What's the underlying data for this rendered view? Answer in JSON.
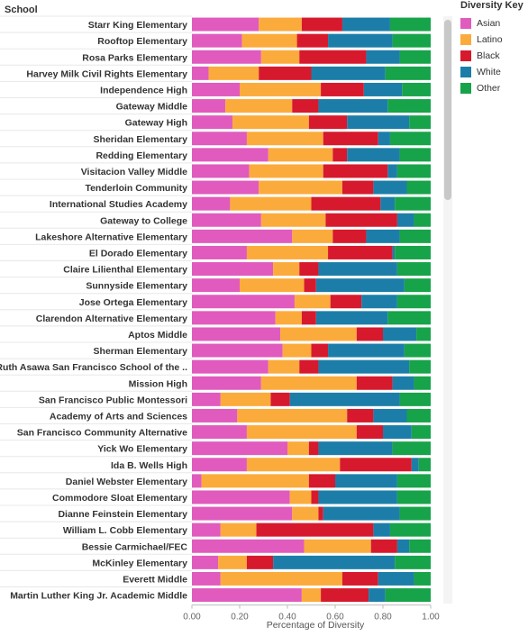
{
  "chart_data": {
    "type": "bar",
    "orientation": "horizontal",
    "stacked": true,
    "header": "School",
    "xlabel": "Percentage of Diversity",
    "xlim": [
      0,
      1
    ],
    "xticks": [
      "0.00",
      "0.20",
      "0.40",
      "0.60",
      "0.80",
      "1.00"
    ],
    "legend_title": "Diversity Key",
    "legend_position": "top-right",
    "series": [
      {
        "name": "Asian",
        "color": "#e05bbd"
      },
      {
        "name": "Latino",
        "color": "#fbab3c"
      },
      {
        "name": "Black",
        "color": "#d7192d"
      },
      {
        "name": "White",
        "color": "#1c7ea8"
      },
      {
        "name": "Other",
        "color": "#17a34a"
      }
    ],
    "categories": [
      "Starr King Elementary",
      "Rooftop Elementary",
      "Rosa Parks Elementary",
      "Harvey Milk Civil Rights Elementary",
      "Independence High",
      "Gateway Middle",
      "Gateway High",
      "Sheridan Elementary",
      "Redding Elementary",
      "Visitacion Valley Middle",
      "Tenderloin Community",
      "International Studies Academy",
      "Gateway to College",
      "Lakeshore Alternative Elementary",
      "El Dorado Elementary",
      "Claire Lilienthal Elementary",
      "Sunnyside Elementary",
      "Jose Ortega Elementary",
      "Clarendon Alternative Elementary",
      "Aptos Middle",
      "Sherman Elementary",
      "Ruth Asawa San Francisco School of the ..",
      "Mission High",
      "San Francisco Public Montessori",
      "Academy of Arts and Sciences",
      "San Francisco Community Alternative",
      "Yick Wo Elementary",
      "Ida B. Wells High",
      "Daniel Webster Elementary",
      "Commodore Sloat Elementary",
      "Dianne Feinstein Elementary",
      "William L. Cobb Elementary",
      "Bessie Carmichael/FEC",
      "McKinley Elementary",
      "Everett Middle",
      "Martin Luther King Jr. Academic Middle"
    ],
    "values": [
      [
        0.28,
        0.18,
        0.17,
        0.2,
        0.17
      ],
      [
        0.21,
        0.23,
        0.13,
        0.27,
        0.16
      ],
      [
        0.29,
        0.16,
        0.28,
        0.14,
        0.13
      ],
      [
        0.07,
        0.21,
        0.22,
        0.31,
        0.19
      ],
      [
        0.2,
        0.34,
        0.18,
        0.16,
        0.12
      ],
      [
        0.14,
        0.28,
        0.11,
        0.29,
        0.18
      ],
      [
        0.17,
        0.32,
        0.16,
        0.26,
        0.09
      ],
      [
        0.23,
        0.32,
        0.23,
        0.05,
        0.17
      ],
      [
        0.32,
        0.27,
        0.06,
        0.22,
        0.13
      ],
      [
        0.24,
        0.31,
        0.27,
        0.04,
        0.14
      ],
      [
        0.28,
        0.35,
        0.13,
        0.14,
        0.1
      ],
      [
        0.16,
        0.34,
        0.29,
        0.06,
        0.15
      ],
      [
        0.29,
        0.27,
        0.3,
        0.07,
        0.07
      ],
      [
        0.42,
        0.17,
        0.14,
        0.14,
        0.13
      ],
      [
        0.23,
        0.34,
        0.27,
        0.01,
        0.15
      ],
      [
        0.34,
        0.11,
        0.08,
        0.33,
        0.14
      ],
      [
        0.2,
        0.27,
        0.05,
        0.37,
        0.11
      ],
      [
        0.43,
        0.15,
        0.13,
        0.15,
        0.14
      ],
      [
        0.35,
        0.11,
        0.06,
        0.3,
        0.18
      ],
      [
        0.37,
        0.32,
        0.11,
        0.14,
        0.06
      ],
      [
        0.38,
        0.12,
        0.07,
        0.32,
        0.11
      ],
      [
        0.32,
        0.13,
        0.08,
        0.38,
        0.09
      ],
      [
        0.29,
        0.4,
        0.15,
        0.09,
        0.07
      ],
      [
        0.12,
        0.21,
        0.08,
        0.46,
        0.13
      ],
      [
        0.19,
        0.46,
        0.11,
        0.14,
        0.1
      ],
      [
        0.23,
        0.46,
        0.11,
        0.12,
        0.08
      ],
      [
        0.4,
        0.09,
        0.04,
        0.31,
        0.16
      ],
      [
        0.23,
        0.39,
        0.3,
        0.03,
        0.05
      ],
      [
        0.04,
        0.45,
        0.11,
        0.26,
        0.14
      ],
      [
        0.41,
        0.09,
        0.03,
        0.33,
        0.14
      ],
      [
        0.42,
        0.11,
        0.02,
        0.32,
        0.13
      ],
      [
        0.12,
        0.15,
        0.49,
        0.07,
        0.17
      ],
      [
        0.47,
        0.28,
        0.11,
        0.05,
        0.09
      ],
      [
        0.11,
        0.12,
        0.11,
        0.51,
        0.15
      ],
      [
        0.12,
        0.51,
        0.15,
        0.15,
        0.07
      ],
      [
        0.46,
        0.08,
        0.2,
        0.07,
        0.19
      ]
    ]
  }
}
